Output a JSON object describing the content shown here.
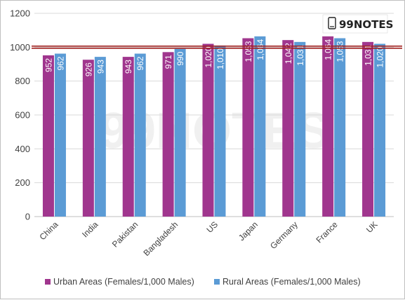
{
  "logo": {
    "text": "99NOTES",
    "icon": "phone-icon"
  },
  "watermark": {
    "text": "99NOTES"
  },
  "chart_data": {
    "type": "bar",
    "title": "",
    "xlabel": "",
    "ylabel": "",
    "categories": [
      "China",
      "India",
      "Pakistan",
      "Bangladesh",
      "US",
      "Japan",
      "Germany",
      "France",
      "UK"
    ],
    "series": [
      {
        "name": "Urban Areas (Females/1,000 Males)",
        "color": "#a0368e",
        "values": [
          952,
          926,
          943,
          971,
          1020,
          1053,
          1042,
          1064,
          1031
        ],
        "labels": [
          "952",
          "926",
          "943",
          "971",
          "1,020",
          "1,053",
          "1,042",
          "1,064",
          "1,031"
        ]
      },
      {
        "name": "Rural Areas (Females/1,000 Males)",
        "color": "#5b9bd5",
        "values": [
          962,
          943,
          962,
          990,
          1010,
          1064,
          1031,
          1053,
          1020
        ],
        "labels": [
          "962",
          "943",
          "962",
          "990",
          "1,010",
          "1,064",
          "1,031",
          "1,053",
          "1,020"
        ]
      }
    ],
    "ylim": [
      0,
      1200
    ],
    "yticks": [
      "0",
      "200",
      "400",
      "600",
      "800",
      "1000",
      "1200"
    ],
    "reference_line": {
      "value": 1000,
      "color": "#a0201f"
    },
    "grid": true,
    "legend_position": "bottom"
  }
}
